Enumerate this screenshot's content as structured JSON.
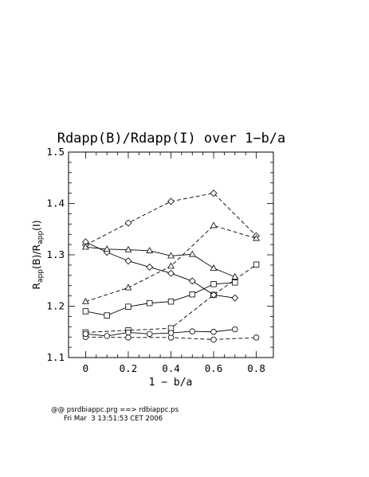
{
  "chart_data": {
    "type": "line",
    "title": "Rdapp(B)/Rdapp(I) over 1−b/a",
    "xlabel": "1 − b/a",
    "ylabel": {
      "main1": "R",
      "sub1": "app",
      "mid": "(B)/R",
      "sub2": "app",
      "end": "(I)"
    },
    "xlim": [
      -0.08,
      0.88
    ],
    "ylim": [
      1.1,
      1.5
    ],
    "xticks": [
      0,
      0.2,
      0.4,
      0.6,
      0.8
    ],
    "xtick_labels": [
      "0",
      "0.2",
      "0.4",
      "0.6",
      "0.8"
    ],
    "yticks": [
      1.1,
      1.2,
      1.3,
      1.4,
      1.5
    ],
    "ytick_labels": [
      "1.1",
      "1.2",
      "1.3",
      "1.4",
      "1.5"
    ],
    "grid": false,
    "series": [
      {
        "marker": "diamond",
        "style": "dashed",
        "x": [
          0,
          0.2,
          0.4,
          0.6,
          0.8
        ],
        "y": [
          1.319,
          1.362,
          1.404,
          1.42,
          1.337
        ]
      },
      {
        "marker": "triangle",
        "style": "dashed",
        "x": [
          0,
          0.2,
          0.4,
          0.6,
          0.8
        ],
        "y": [
          1.209,
          1.236,
          1.278,
          1.357,
          1.332
        ]
      },
      {
        "marker": "square",
        "style": "dashed",
        "x": [
          0,
          0.2,
          0.4,
          0.6,
          0.8
        ],
        "y": [
          1.149,
          1.153,
          1.157,
          1.222,
          1.281
        ]
      },
      {
        "marker": "circle",
        "style": "dashed",
        "x": [
          0,
          0.2,
          0.4,
          0.6,
          0.8
        ],
        "y": [
          1.14,
          1.139,
          1.139,
          1.135,
          1.139
        ]
      },
      {
        "marker": "diamond",
        "style": "solid",
        "x": [
          0,
          0.1,
          0.2,
          0.3,
          0.4,
          0.5,
          0.6,
          0.7
        ],
        "y": [
          1.325,
          1.305,
          1.288,
          1.276,
          1.264,
          1.249,
          1.222,
          1.216
        ]
      },
      {
        "marker": "triangle",
        "style": "solid",
        "x": [
          0,
          0.1,
          0.2,
          0.3,
          0.4,
          0.5,
          0.6,
          0.7
        ],
        "y": [
          1.315,
          1.311,
          1.31,
          1.308,
          1.298,
          1.301,
          1.274,
          1.257
        ]
      },
      {
        "marker": "square",
        "style": "solid",
        "x": [
          0,
          0.1,
          0.2,
          0.3,
          0.4,
          0.5,
          0.6,
          0.7
        ],
        "y": [
          1.19,
          1.182,
          1.199,
          1.206,
          1.209,
          1.223,
          1.243,
          1.246
        ]
      },
      {
        "marker": "circle",
        "style": "solid",
        "x": [
          0,
          0.1,
          0.2,
          0.3,
          0.4,
          0.5,
          0.6,
          0.7
        ],
        "y": [
          1.146,
          1.142,
          1.149,
          1.146,
          1.148,
          1.151,
          1.15,
          1.155
        ]
      }
    ]
  },
  "footer": {
    "line1": "@@ psrdbiappc.prg ==> rdbiappc.ps",
    "line2": "Fri Mar  3 13:51:53 CET 2006"
  }
}
